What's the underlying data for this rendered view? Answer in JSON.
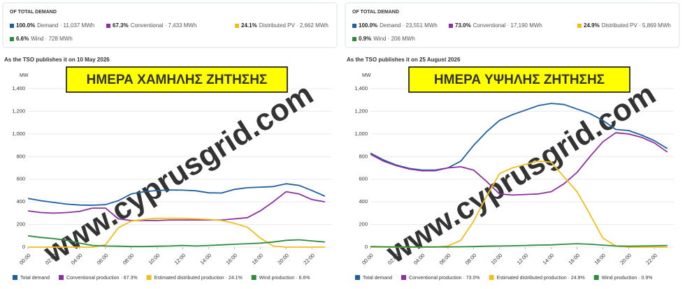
{
  "chart_data": [
    {
      "type": "line",
      "header": "OF TOTAL DEMAND",
      "summary": [
        {
          "percent": "100.0%",
          "label": "Demand · 11,037 MWh"
        },
        {
          "percent": "67.3%",
          "label": "Conventional · 7,433 MWh"
        },
        {
          "percent": "24.1%",
          "label": "Distributed PV · 2,662 MWh"
        },
        {
          "percent": "6.6%",
          "label": "Wind · 728 MWh"
        }
      ],
      "subtitle": "As the TSO publishes it on 10 May 2026",
      "banner": "ΗΜΕΡΑ ΧΑΜΗΛΗΣ ΖΗΤΗΣΗΣ",
      "watermark": "www.cyprusgrid.com",
      "ylabel": "MW",
      "x": [
        0,
        1,
        2,
        3,
        4,
        5,
        6,
        7,
        8,
        9,
        10,
        11,
        12,
        13,
        14,
        15,
        16,
        17,
        18,
        19,
        20,
        21,
        22,
        23
      ],
      "xlim": [
        0,
        23.5
      ],
      "xticks": [
        {
          "value": 0,
          "label": "00:00"
        },
        {
          "value": 2,
          "label": "02:00"
        },
        {
          "value": 4,
          "label": "04:00"
        },
        {
          "value": 6,
          "label": "06:00"
        },
        {
          "value": 8,
          "label": "08:00"
        },
        {
          "value": 10,
          "label": "10:00"
        },
        {
          "value": 12,
          "label": "12:00"
        },
        {
          "value": 14,
          "label": "14:00"
        },
        {
          "value": 16,
          "label": "16:00"
        },
        {
          "value": 18,
          "label": "18:00"
        },
        {
          "value": 20,
          "label": "20:00"
        },
        {
          "value": 22,
          "label": "22:00"
        }
      ],
      "ylim": [
        0,
        1400
      ],
      "yticks": [
        0,
        200,
        400,
        600,
        800,
        {
          "value": 1000,
          "label": "1,000"
        },
        {
          "value": 1200,
          "label": "1,200"
        },
        {
          "value": 1400,
          "label": "1,400"
        }
      ],
      "grid": true,
      "series": [
        {
          "name": "Total demand",
          "color": "#1f5f9f",
          "values": [
            430,
            410,
            395,
            380,
            372,
            370,
            375,
            410,
            470,
            490,
            500,
            505,
            503,
            498,
            480,
            478,
            510,
            525,
            530,
            535,
            560,
            545,
            500,
            450
          ]
        },
        {
          "name": "Conventional production · 67.3%",
          "color": "#8e2ea3",
          "values": [
            320,
            305,
            300,
            305,
            315,
            345,
            345,
            250,
            235,
            235,
            235,
            240,
            240,
            240,
            240,
            240,
            250,
            260,
            320,
            400,
            490,
            470,
            420,
            400
          ]
        },
        {
          "name": "Estimated distributed production · 24.1%",
          "color": "#f0bf1a",
          "values": [
            0,
            0,
            0,
            0,
            0,
            0,
            20,
            170,
            230,
            245,
            255,
            255,
            255,
            250,
            245,
            235,
            210,
            175,
            80,
            10,
            0,
            0,
            0,
            0
          ]
        },
        {
          "name": "Wind production · 6.6%",
          "color": "#2e8b3e",
          "values": [
            100,
            85,
            75,
            60,
            35,
            15,
            10,
            8,
            5,
            5,
            8,
            10,
            15,
            10,
            15,
            20,
            25,
            30,
            35,
            45,
            60,
            65,
            55,
            45
          ]
        }
      ]
    },
    {
      "type": "line",
      "header": "OF TOTAL DEMAND",
      "summary": [
        {
          "percent": "100.0%",
          "label": "Demand · 23,551 MWh"
        },
        {
          "percent": "73.0%",
          "label": "Conventional · 17,190 MWh"
        },
        {
          "percent": "24.9%",
          "label": "Distributed PV · 5,869 MWh"
        },
        {
          "percent": "0.9%",
          "label": "Wind · 206 MWh"
        }
      ],
      "subtitle": "As the TSO publishes it on 25 August 2026",
      "banner": "ΗΜΕΡΑ ΥΨΗΛΗΣ ΖΗΤΗΣΗΣ",
      "watermark": "www.cyprusgrid.com",
      "ylabel": "MW",
      "x": [
        0,
        1,
        2,
        3,
        4,
        5,
        6,
        7,
        8,
        9,
        10,
        11,
        12,
        13,
        14,
        15,
        16,
        17,
        18,
        19,
        20,
        21,
        22,
        23
      ],
      "xlim": [
        0,
        23.5
      ],
      "xticks": [
        {
          "value": 0,
          "label": "00:00"
        },
        {
          "value": 2,
          "label": "02:00"
        },
        {
          "value": 4,
          "label": "04:00"
        },
        {
          "value": 6,
          "label": "06:00"
        },
        {
          "value": 8,
          "label": "08:00"
        },
        {
          "value": 10,
          "label": "10:00"
        },
        {
          "value": 12,
          "label": "12:00"
        },
        {
          "value": 14,
          "label": "14:00"
        },
        {
          "value": 16,
          "label": "16:00"
        },
        {
          "value": 18,
          "label": "18:00"
        },
        {
          "value": 20,
          "label": "20:00"
        },
        {
          "value": 22,
          "label": "22:00"
        }
      ],
      "ylim": [
        0,
        1400
      ],
      "yticks": [
        0,
        200,
        400,
        600,
        800,
        {
          "value": 1000,
          "label": "1,000"
        },
        {
          "value": 1200,
          "label": "1,200"
        },
        {
          "value": 1400,
          "label": "1,400"
        }
      ],
      "grid": true,
      "series": [
        {
          "name": "Total demand",
          "color": "#1f5f9f",
          "values": [
            830,
            770,
            725,
            695,
            680,
            680,
            700,
            760,
            900,
            1020,
            1120,
            1170,
            1210,
            1250,
            1270,
            1260,
            1220,
            1180,
            1120,
            1040,
            1030,
            990,
            940,
            870
          ]
        },
        {
          "name": "Conventional production · 73.0%",
          "color": "#8e2ea3",
          "values": [
            820,
            760,
            720,
            690,
            675,
            675,
            700,
            710,
            680,
            580,
            470,
            460,
            465,
            470,
            490,
            560,
            660,
            800,
            930,
            1010,
            1000,
            970,
            920,
            840
          ]
        },
        {
          "name": "Estimated distributed production · 24.9%",
          "color": "#f0bf1a",
          "values": [
            0,
            0,
            0,
            0,
            0,
            0,
            10,
            60,
            230,
            450,
            650,
            700,
            730,
            760,
            750,
            620,
            490,
            290,
            80,
            10,
            0,
            0,
            0,
            0
          ]
        },
        {
          "name": "Wind production · 0.9%",
          "color": "#2e8b3e",
          "values": [
            5,
            3,
            2,
            2,
            2,
            2,
            2,
            3,
            5,
            8,
            10,
            12,
            15,
            18,
            20,
            25,
            30,
            25,
            18,
            10,
            8,
            10,
            12,
            15
          ]
        }
      ]
    }
  ]
}
